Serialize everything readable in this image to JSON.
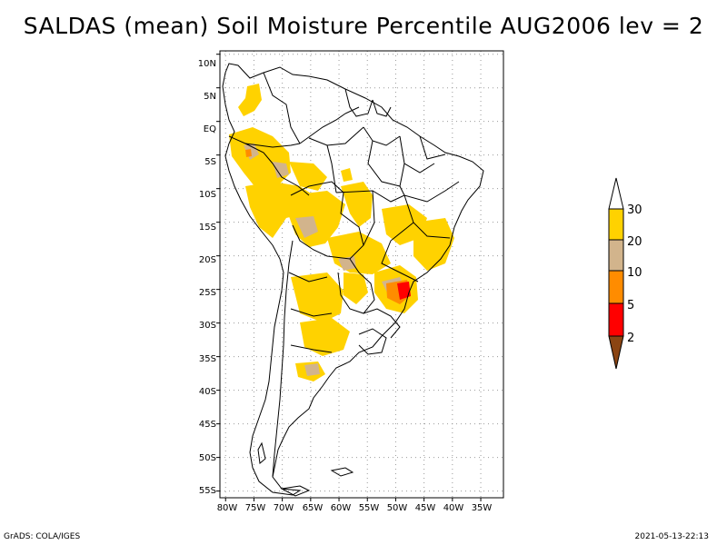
{
  "title": "SALDAS (mean) Soil Moisture Percentile AUG2006 lev = 2",
  "map": {
    "lat_labels": [
      "10N",
      "5N",
      "EQ",
      "5S",
      "10S",
      "15S",
      "20S",
      "25S",
      "30S",
      "35S",
      "40S",
      "45S",
      "50S",
      "55S"
    ],
    "lon_labels": [
      "80W",
      "75W",
      "70W",
      "65W",
      "60W",
      "55W",
      "50W",
      "45W",
      "40W",
      "35W"
    ],
    "lat_values": [
      10,
      5,
      0,
      -5,
      -10,
      -15,
      -20,
      -25,
      -30,
      -35,
      -40,
      -45,
      -50,
      -55
    ],
    "lon_values": [
      -80,
      -75,
      -70,
      -65,
      -60,
      -55,
      -50,
      -45,
      -40,
      -35
    ],
    "lat_range": [
      -56,
      10.5
    ],
    "lon_range": [
      -81,
      -31
    ]
  },
  "legend": {
    "labels": [
      "30",
      "20",
      "10",
      "5",
      "2"
    ],
    "classes": [
      {
        "range": ">30",
        "color": "#ffffff"
      },
      {
        "range": "20-30",
        "color": "#ffd200"
      },
      {
        "range": "10-20",
        "color": "#d2b48c"
      },
      {
        "range": "5-10",
        "color": "#ff8c00"
      },
      {
        "range": "2-5",
        "color": "#ff0000"
      },
      {
        "range": "<2",
        "color": "#8b4513"
      }
    ]
  },
  "footer": {
    "left": "GrADS: COLA/IGES",
    "right": "2021-05-13-22:13"
  }
}
